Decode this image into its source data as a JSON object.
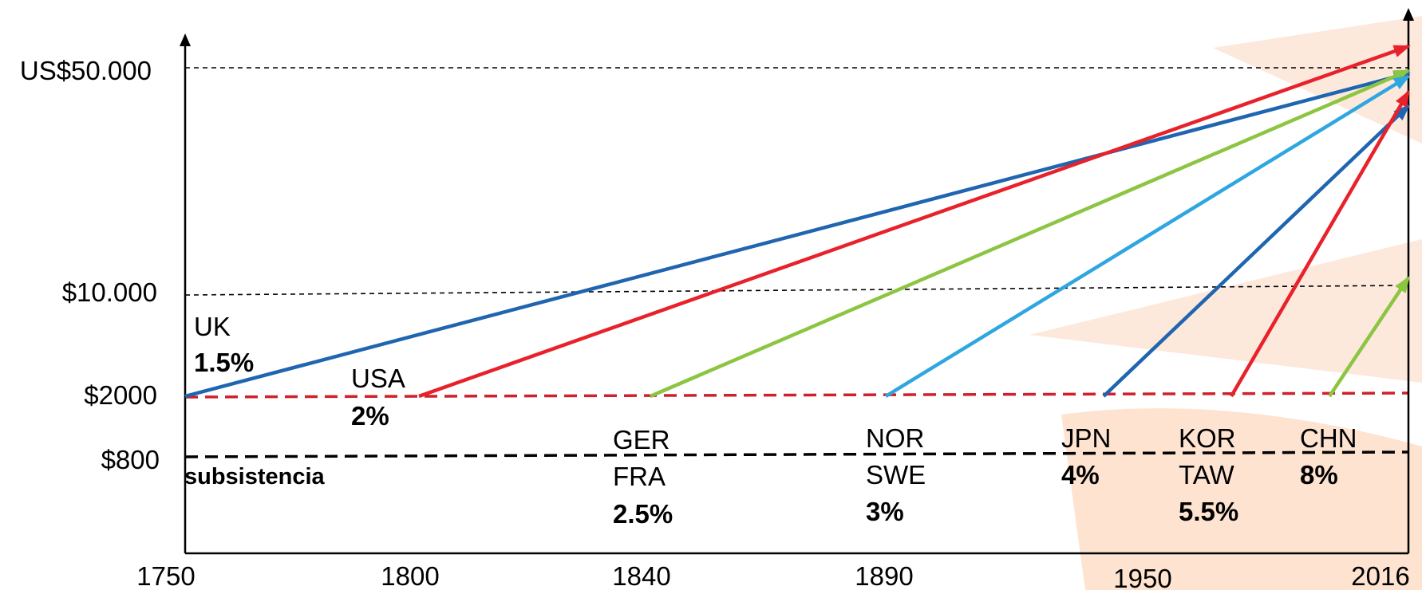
{
  "chart_data": {
    "type": "line",
    "x_ticks": [
      "1750",
      "1800",
      "1840",
      "1890",
      "1950",
      "2016"
    ],
    "y_ticks": [
      "US$50.000",
      "$10.000",
      "$2000",
      "$800"
    ],
    "subsistence_label": "subsistencia",
    "series": [
      {
        "name": "UK",
        "color": "#1f65b0",
        "growth": "1.5%",
        "start": {
          "x": 1750,
          "y": 2000
        },
        "end": {
          "x": 2016,
          "y": 48000
        }
      },
      {
        "name": "USA",
        "color": "#e8212b",
        "growth": "2%",
        "start": {
          "x": 1800,
          "y": 2000
        },
        "end": {
          "x": 2016,
          "y": 58000
        }
      },
      {
        "name": "GER / FRA",
        "color": "#8bc541",
        "growth": "2.5%",
        "start": {
          "x": 1840,
          "y": 2000
        },
        "end": {
          "x": 2016,
          "y": 49000
        }
      },
      {
        "name": "NOR / SWE",
        "color": "#2fa6e0",
        "growth": "3%",
        "start": {
          "x": 1890,
          "y": 2000
        },
        "end": {
          "x": 2016,
          "y": 47000
        }
      },
      {
        "name": "JPN",
        "color": "#1f65b0",
        "growth": "4%",
        "start": {
          "x": 1950,
          "y": 2000
        },
        "end": {
          "x": 2016,
          "y": 38000
        }
      },
      {
        "name": "KOR / TAW",
        "color": "#e8212b",
        "growth": "5.5%",
        "start": {
          "x": 1980,
          "y": 2000
        },
        "end": {
          "x": 2016,
          "y": 42000
        }
      },
      {
        "name": "CHN",
        "color": "#8bc541",
        "growth": "8%",
        "start": {
          "x": 2000,
          "y": 2000
        },
        "end": {
          "x": 2016,
          "y": 11000
        }
      }
    ],
    "annotations": [
      {
        "id": "uk",
        "lines": [
          {
            "text": "UK",
            "bold": false
          },
          {
            "text": "1.5%",
            "bold": true
          }
        ]
      },
      {
        "id": "usa",
        "lines": [
          {
            "text": "USA",
            "bold": false
          },
          {
            "text": "2%",
            "bold": true
          }
        ]
      },
      {
        "id": "gerfra",
        "lines": [
          {
            "text": "GER",
            "bold": false
          },
          {
            "text": "FRA",
            "bold": false
          },
          {
            "text": "2.5%",
            "bold": true
          }
        ]
      },
      {
        "id": "norswe",
        "lines": [
          {
            "text": "NOR",
            "bold": false
          },
          {
            "text": "SWE",
            "bold": false
          },
          {
            "text": "3%",
            "bold": true
          }
        ]
      },
      {
        "id": "jpn",
        "lines": [
          {
            "text": "JPN",
            "bold": false
          },
          {
            "text": "4%",
            "bold": true
          }
        ]
      },
      {
        "id": "kortaw",
        "lines": [
          {
            "text": "KOR",
            "bold": false
          },
          {
            "text": "TAW",
            "bold": false
          },
          {
            "text": "5.5%",
            "bold": true
          }
        ]
      },
      {
        "id": "chn",
        "lines": [
          {
            "text": "CHN",
            "bold": false
          },
          {
            "text": "8%",
            "bold": true
          }
        ]
      }
    ],
    "grid": false
  }
}
